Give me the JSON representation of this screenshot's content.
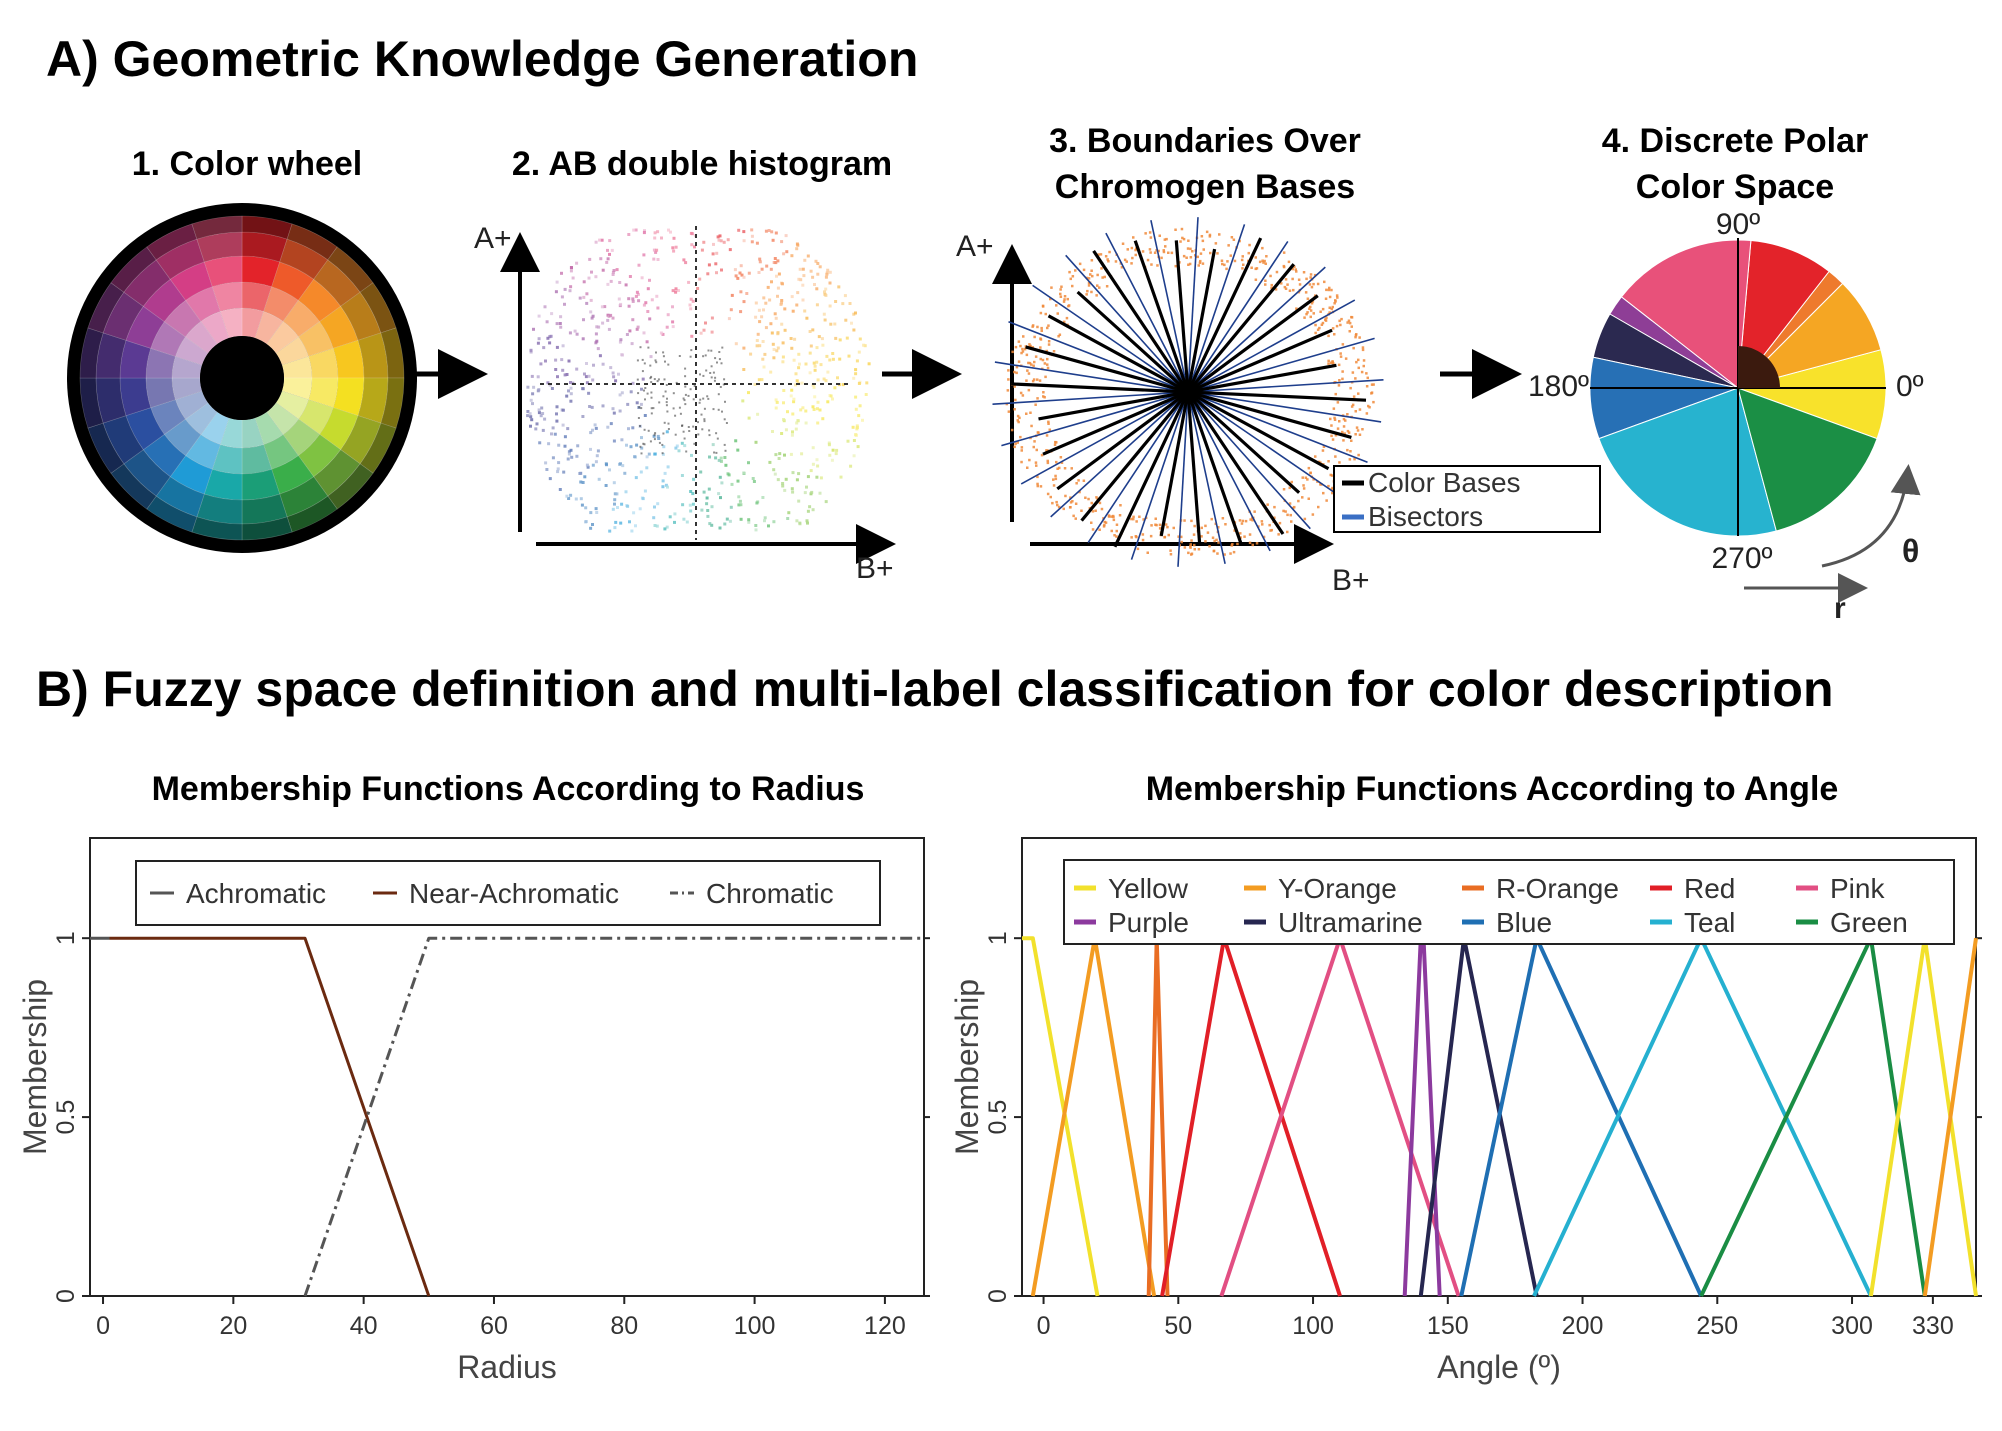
{
  "section_a": {
    "title": "A) Geometric Knowledge Generation",
    "step1": "1. Color wheel",
    "step2": "2. AB double histogram",
    "step3_line1": "3. Boundaries Over",
    "step3_line2": "Chromogen Bases",
    "step4_line1": "4. Discrete Polar",
    "step4_line2": "Color Space",
    "axis_a": "A+",
    "axis_b": "B+",
    "legend_bases": "Color Bases",
    "legend_bisectors": "Bisectors",
    "polar_labels": {
      "deg90": "90º",
      "deg180": "180º",
      "deg0": "0º",
      "deg270": "270º",
      "theta": "θ",
      "r": "r"
    },
    "polar_sectors": [
      {
        "name": "Yellow",
        "start": -20,
        "end": 15,
        "color": "#F8E22B"
      },
      {
        "name": "Y-Orange",
        "start": 15,
        "end": 45,
        "color": "#F5A623"
      },
      {
        "name": "R-Orange",
        "start": 45,
        "end": 52,
        "color": "#EE7A2D"
      },
      {
        "name": "Red",
        "start": 52,
        "end": 85,
        "color": "#E3232A"
      },
      {
        "name": "Pink",
        "start": 85,
        "end": 142,
        "color": "#E8517A"
      },
      {
        "name": "Purple",
        "start": 142,
        "end": 150,
        "color": "#8E3E96"
      },
      {
        "name": "Ultramarine",
        "start": 150,
        "end": 168,
        "color": "#2B2950"
      },
      {
        "name": "Blue",
        "start": 168,
        "end": 200,
        "color": "#2770B5"
      },
      {
        "name": "Teal",
        "start": 200,
        "end": 285,
        "color": "#27B3CF"
      },
      {
        "name": "Green",
        "start": 285,
        "end": 340,
        "color": "#1B8F45"
      }
    ],
    "wheel_colors": [
      "#E3232A",
      "#EE5A2A",
      "#F5892A",
      "#F5A623",
      "#F7C71F",
      "#F4E021",
      "#C6DB2E",
      "#7FC242",
      "#3AAE4A",
      "#1B9E77",
      "#19A8A8",
      "#1F9BD6",
      "#2770B5",
      "#2B4FA0",
      "#3C3C8F",
      "#5B3A93",
      "#8E3E96",
      "#B03C8E",
      "#D43E85",
      "#E8517A"
    ]
  },
  "section_b": {
    "title": "B) Fuzzy space definition and multi-label classification for color description",
    "radius_chart": {
      "title": "Membership Functions According to Radius",
      "xlabel": "Radius",
      "ylabel": "Membership"
    },
    "angle_chart": {
      "title": "Membership Functions According to Angle",
      "xlabel": "Angle (º)",
      "ylabel": "Membership"
    }
  },
  "chart_data": [
    {
      "type": "line",
      "title": "Membership Functions According to Radius",
      "xlabel": "Radius",
      "ylabel": "Membership",
      "xlim": [
        -2,
        126
      ],
      "ylim": [
        0,
        1.28
      ],
      "xticks": [
        "0",
        "20",
        "40",
        "60",
        "80",
        "100",
        "120"
      ],
      "yticks": [
        "0",
        "0.5",
        "1"
      ],
      "legend_position": "top",
      "series": [
        {
          "name": "Achromatic",
          "color": "#555555",
          "style": "solid",
          "points": [
            [
              -2,
              1
            ],
            [
              1,
              1
            ]
          ]
        },
        {
          "name": "Near-Achromatic",
          "color": "#6B2A10",
          "style": "solid",
          "points": [
            [
              1,
              1
            ],
            [
              31,
              1
            ],
            [
              50,
              0
            ]
          ]
        },
        {
          "name": "Chromatic",
          "color": "#555555",
          "style": "dashdot",
          "points": [
            [
              31,
              0
            ],
            [
              50,
              1
            ],
            [
              126,
              1
            ]
          ]
        }
      ]
    },
    {
      "type": "line",
      "title": "Membership Functions According to Angle",
      "xlabel": "Angle (º)",
      "ylabel": "Membership",
      "xlim": [
        -8,
        346
      ],
      "ylim": [
        0,
        1.28
      ],
      "xticks": [
        "0",
        "50",
        "100",
        "150",
        "200",
        "250",
        "300",
        "330"
      ],
      "yticks": [
        "0",
        "0.5",
        "1"
      ],
      "legend_position": "top",
      "series": [
        {
          "name": "Yellow",
          "color": "#F2E12C",
          "points": [
            [
              -8,
              1
            ],
            [
              -4,
              1
            ],
            [
              20,
              0
            ]
          ]
        },
        {
          "name": "Y-Orange",
          "color": "#F39C22",
          "points": [
            [
              -4,
              0
            ],
            [
              19,
              1
            ],
            [
              41,
              0
            ]
          ]
        },
        {
          "name": "R-Orange",
          "color": "#E96D23",
          "points": [
            [
              39,
              0
            ],
            [
              42,
              1
            ],
            [
              46,
              0
            ]
          ]
        },
        {
          "name": "Red",
          "color": "#E11F27",
          "points": [
            [
              44,
              0
            ],
            [
              67,
              1
            ],
            [
              110,
              0
            ]
          ]
        },
        {
          "name": "Pink",
          "color": "#E24F83",
          "points": [
            [
              66,
              0
            ],
            [
              110,
              1
            ],
            [
              154,
              0
            ]
          ]
        },
        {
          "name": "Purple",
          "color": "#8C3A9E",
          "points": [
            [
              134,
              0
            ],
            [
              140,
              1
            ],
            [
              141,
              1
            ],
            [
              147,
              0
            ]
          ]
        },
        {
          "name": "Ultramarine",
          "color": "#262650",
          "points": [
            [
              140,
              0
            ],
            [
              156,
              1
            ],
            [
              183,
              0
            ]
          ]
        },
        {
          "name": "Blue",
          "color": "#1F6FB3",
          "points": [
            [
              155,
              0
            ],
            [
              183,
              1
            ],
            [
              244,
              0
            ]
          ]
        },
        {
          "name": "Teal",
          "color": "#25B0D0",
          "points": [
            [
              182,
              0
            ],
            [
              244,
              1
            ],
            [
              307,
              0
            ]
          ]
        },
        {
          "name": "Green",
          "color": "#1A8D44",
          "points": [
            [
              244,
              0
            ],
            [
              307,
              1
            ],
            [
              327,
              0
            ]
          ]
        },
        {
          "name": "Yellow",
          "color": "#F2E12C",
          "points": [
            [
              307,
              0
            ],
            [
              327,
              1
            ],
            [
              346,
              0
            ]
          ]
        },
        {
          "name": "Y-Orange",
          "color": "#F39C22",
          "points": [
            [
              327,
              0
            ],
            [
              346,
              1
            ]
          ]
        }
      ],
      "legend": [
        {
          "name": "Yellow",
          "color": "#F2E12C"
        },
        {
          "name": "Y-Orange",
          "color": "#F39C22"
        },
        {
          "name": "R-Orange",
          "color": "#E96D23"
        },
        {
          "name": "Red",
          "color": "#E11F27"
        },
        {
          "name": "Pink",
          "color": "#E24F83"
        },
        {
          "name": "Purple",
          "color": "#8C3A9E"
        },
        {
          "name": "Ultramarine",
          "color": "#262650"
        },
        {
          "name": "Blue",
          "color": "#1F6FB3"
        },
        {
          "name": "Teal",
          "color": "#25B0D0"
        },
        {
          "name": "Green",
          "color": "#1A8D44"
        }
      ]
    }
  ]
}
